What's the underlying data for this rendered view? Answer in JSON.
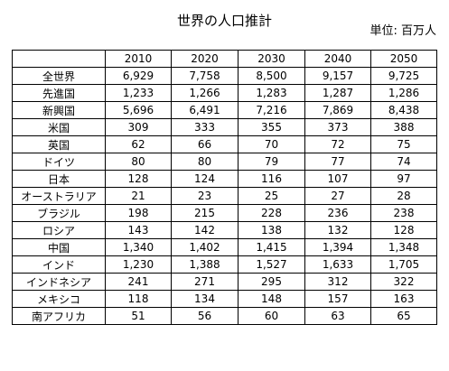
{
  "title": "世界の人口推計",
  "unit": "単位: 百万人",
  "corner": "",
  "years": [
    "2010",
    "2020",
    "2030",
    "2040",
    "2050"
  ],
  "rows": [
    {
      "label": "全世界",
      "values": [
        "6,929",
        "7,758",
        "8,500",
        "9,157",
        "9,725"
      ]
    },
    {
      "label": "先進国",
      "values": [
        "1,233",
        "1,266",
        "1,283",
        "1,287",
        "1,286"
      ]
    },
    {
      "label": "新興国",
      "values": [
        "5,696",
        "6,491",
        "7,216",
        "7,869",
        "8,438"
      ]
    },
    {
      "label": "米国",
      "values": [
        "309",
        "333",
        "355",
        "373",
        "388"
      ]
    },
    {
      "label": "英国",
      "values": [
        "62",
        "66",
        "70",
        "72",
        "75"
      ]
    },
    {
      "label": "ドイツ",
      "values": [
        "80",
        "80",
        "79",
        "77",
        "74"
      ]
    },
    {
      "label": "日本",
      "values": [
        "128",
        "124",
        "116",
        "107",
        "97"
      ]
    },
    {
      "label": "オーストラリア",
      "values": [
        "21",
        "23",
        "25",
        "27",
        "28"
      ]
    },
    {
      "label": "ブラジル",
      "values": [
        "198",
        "215",
        "228",
        "236",
        "238"
      ]
    },
    {
      "label": "ロシア",
      "values": [
        "143",
        "142",
        "138",
        "132",
        "128"
      ]
    },
    {
      "label": "中国",
      "values": [
        "1,340",
        "1,402",
        "1,415",
        "1,394",
        "1,348"
      ]
    },
    {
      "label": "インド",
      "values": [
        "1,230",
        "1,388",
        "1,527",
        "1,633",
        "1,705"
      ]
    },
    {
      "label": "インドネシア",
      "values": [
        "241",
        "271",
        "295",
        "312",
        "322"
      ]
    },
    {
      "label": "メキシコ",
      "values": [
        "118",
        "134",
        "148",
        "157",
        "163"
      ]
    },
    {
      "label": "南アフリカ",
      "values": [
        "51",
        "56",
        "60",
        "63",
        "65"
      ]
    }
  ]
}
